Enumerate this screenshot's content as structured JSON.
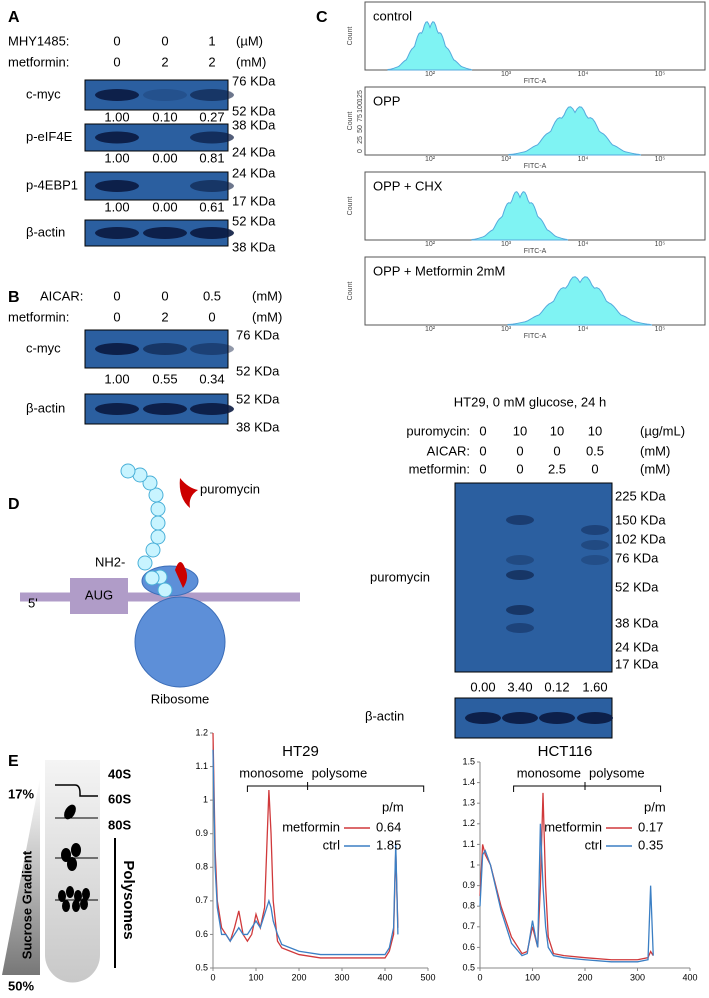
{
  "panels": {
    "A": {
      "label": "A",
      "rows": [
        {
          "label": "MHY1485:",
          "values": [
            "0",
            "0",
            "1"
          ],
          "unit": "(µM)"
        },
        {
          "label": "metformin:",
          "values": [
            "0",
            "2",
            "2"
          ],
          "unit": "(mM)"
        }
      ],
      "blots": [
        {
          "name": "c-myc",
          "markers": [
            "76 KDa",
            "52 KDa"
          ],
          "quant": [
            "1.00",
            "0.10",
            "0.27"
          ]
        },
        {
          "name": "p-eIF4E",
          "markers": [
            "38 KDa",
            "24 KDa"
          ],
          "quant": [
            "1.00",
            "0.00",
            "0.81"
          ]
        },
        {
          "name": "p-4EBP1",
          "markers": [
            "24 KDa",
            "17 KDa"
          ],
          "quant": [
            "1.00",
            "0.00",
            "0.61"
          ]
        },
        {
          "name": "β-actin",
          "markers": [
            "52 KDa",
            "38 KDa"
          ]
        }
      ]
    },
    "B": {
      "label": "B",
      "rows": [
        {
          "label": "AICAR:",
          "values": [
            "0",
            "0",
            "0.5"
          ],
          "unit": "(mM)"
        },
        {
          "label": "metformin:",
          "values": [
            "0",
            "2",
            "0"
          ],
          "unit": "(mM)"
        }
      ],
      "blots": [
        {
          "name": "c-myc",
          "markers": [
            "76 KDa",
            "52 KDa"
          ],
          "quant": [
            "1.00",
            "0.55",
            "0.34"
          ]
        },
        {
          "name": "β-actin",
          "markers": [
            "52 KDa",
            "38 KDa"
          ]
        }
      ]
    },
    "C": {
      "label": "C",
      "y_label": "Count",
      "x_label": "FITC-A",
      "xticks": [
        "10²",
        "10³",
        "10⁴",
        "10⁵"
      ],
      "histograms": [
        {
          "label": "control"
        },
        {
          "label": "OPP",
          "yticks": [
            "0",
            "25",
            "50",
            "75",
            "100",
            "125"
          ]
        },
        {
          "label": "OPP + CHX"
        },
        {
          "label": "OPP + Metformin 2mM"
        }
      ],
      "blot": {
        "title": "HT29, 0 mM glucose, 24 h",
        "rows": [
          {
            "label": "puromycin:",
            "values": [
              "0",
              "10",
              "10",
              "10"
            ],
            "unit": "(µg/mL)"
          },
          {
            "label": "AICAR:",
            "values": [
              "0",
              "0",
              "0",
              "0.5"
            ],
            "unit": "(mM)"
          },
          {
            "label": "metformin:",
            "values": [
              "0",
              "0",
              "2.5",
              "0"
            ],
            "unit": "(mM)"
          }
        ],
        "name": "puromycin",
        "markers": [
          "225 KDa",
          "150 KDa",
          "102 KDa",
          "76 KDa",
          "52 KDa",
          "38 KDa",
          "24 KDa",
          "17 KDa"
        ],
        "quant": [
          "0.00",
          "3.40",
          "0.12",
          "1.60"
        ],
        "loading": "β-actin"
      }
    },
    "D": {
      "label": "D",
      "nh2": "NH2-",
      "drug": "puromycin",
      "five_prime": "5'",
      "codon": "AUG",
      "ribosome": "Ribosome"
    },
    "E": {
      "label": "E",
      "top": "17%",
      "bottom": "50%",
      "gradient": "Sucrose Gradient",
      "fractions": [
        "40S",
        "60S",
        "80S"
      ],
      "polysomes": "Polysomes"
    }
  },
  "chart_data": [
    {
      "type": "line",
      "title": "HT29",
      "annotations": [
        "monosome",
        "polysome"
      ],
      "legend_title": "p/m",
      "x": [
        0,
        5,
        10,
        20,
        30,
        40,
        50,
        60,
        70,
        80,
        90,
        100,
        110,
        120,
        130,
        135,
        140,
        150,
        160,
        180,
        200,
        250,
        300,
        350,
        400,
        410,
        420,
        425,
        430
      ],
      "series": [
        {
          "name": "metformin",
          "color": "#d0393b",
          "pm": "0.64",
          "values": [
            1.2,
            0.85,
            0.7,
            0.62,
            0.6,
            0.58,
            0.62,
            0.67,
            0.6,
            0.58,
            0.6,
            0.66,
            0.62,
            0.68,
            1.03,
            0.9,
            0.7,
            0.58,
            0.56,
            0.55,
            0.54,
            0.53,
            0.53,
            0.53,
            0.53,
            0.55,
            0.6,
            0.85,
            0.62
          ]
        },
        {
          "name": "ctrl",
          "color": "#3b7fc4",
          "pm": "1.85",
          "values": [
            1.15,
            0.8,
            0.68,
            0.6,
            0.6,
            0.58,
            0.6,
            0.62,
            0.6,
            0.6,
            0.62,
            0.64,
            0.62,
            0.66,
            0.7,
            0.68,
            0.64,
            0.6,
            0.57,
            0.56,
            0.55,
            0.54,
            0.54,
            0.54,
            0.54,
            0.56,
            0.62,
            0.87,
            0.6
          ]
        }
      ],
      "xlim": [
        0,
        500
      ],
      "xticks": [
        0,
        100,
        200,
        300,
        400,
        500
      ],
      "ylim": [
        0.5,
        1.2
      ],
      "yticks": [
        0.5,
        0.6,
        0.7,
        0.8,
        0.9,
        1,
        1.1,
        1.2
      ]
    },
    {
      "type": "line",
      "title": "HCT116",
      "annotations": [
        "monosome",
        "polysome"
      ],
      "legend_title": "p/m",
      "x": [
        0,
        5,
        10,
        20,
        40,
        60,
        80,
        90,
        100,
        105,
        110,
        115,
        120,
        125,
        130,
        140,
        160,
        200,
        250,
        300,
        320,
        325,
        330
      ],
      "series": [
        {
          "name": "metformin",
          "color": "#d0393b",
          "pm": "0.17",
          "values": [
            0.85,
            1.1,
            1.05,
            1.0,
            0.8,
            0.65,
            0.57,
            0.58,
            0.7,
            0.65,
            0.6,
            0.9,
            1.35,
            0.9,
            0.65,
            0.57,
            0.56,
            0.55,
            0.54,
            0.54,
            0.55,
            0.58,
            0.56
          ]
        },
        {
          "name": "ctrl",
          "color": "#3b7fc4",
          "pm": "0.35",
          "values": [
            0.8,
            1.05,
            1.07,
            1.0,
            0.78,
            0.62,
            0.56,
            0.57,
            0.73,
            0.66,
            0.6,
            1.2,
            0.9,
            0.7,
            0.6,
            0.56,
            0.55,
            0.54,
            0.53,
            0.53,
            0.54,
            0.9,
            0.56
          ]
        }
      ],
      "xlim": [
        0,
        400
      ],
      "xticks": [
        0,
        100,
        200,
        300,
        400
      ],
      "ylim": [
        0.5,
        1.5
      ],
      "yticks": [
        0.5,
        0.6,
        0.7,
        0.8,
        0.9,
        1,
        1.1,
        1.2,
        1.3,
        1.4,
        1.5
      ]
    }
  ]
}
